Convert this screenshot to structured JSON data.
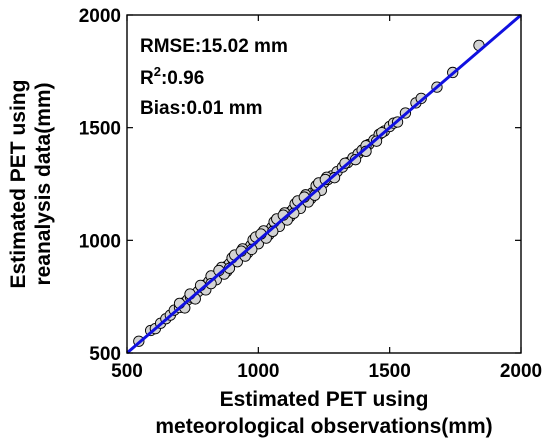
{
  "chart_data": {
    "type": "scatter",
    "title": "",
    "xlabel": [
      "Estimated PET using",
      "meteorological observations(mm)"
    ],
    "ylabel": [
      "Estimated PET using",
      "reanalysis data(mm)"
    ],
    "xlim": [
      500,
      2000
    ],
    "ylim": [
      500,
      2000
    ],
    "xticks": [
      "500",
      "1000",
      "1500",
      "2000"
    ],
    "yticks": [
      "500",
      "1000",
      "1500",
      "2000"
    ],
    "grid": false,
    "fit_line": {
      "color": "#1010e0",
      "x": [
        500,
        2000
      ],
      "y": [
        500,
        2000
      ]
    },
    "annotations": {
      "rmse": "RMSE:15.02 mm",
      "r2_base": "R",
      "r2_sup": "2",
      "r2_value": ":0.96",
      "bias": "Bias:0.01 mm"
    },
    "marker_color": "#d3d3d3",
    "series": [
      {
        "points": [
          [
            545,
            552
          ],
          [
            590,
            600
          ],
          [
            608,
            608
          ],
          [
            628,
            632
          ],
          [
            648,
            652
          ],
          [
            665,
            668
          ],
          [
            680,
            690
          ],
          [
            700,
            702
          ],
          [
            715,
            722
          ],
          [
            730,
            735
          ],
          [
            742,
            748
          ],
          [
            755,
            758
          ],
          [
            770,
            772
          ],
          [
            785,
            792
          ],
          [
            798,
            802
          ],
          [
            812,
            818
          ],
          [
            825,
            830
          ],
          [
            838,
            840
          ],
          [
            852,
            858
          ],
          [
            865,
            870
          ],
          [
            878,
            884
          ],
          [
            890,
            896
          ],
          [
            905,
            912
          ],
          [
            918,
            922
          ],
          [
            930,
            936
          ],
          [
            945,
            950
          ],
          [
            958,
            962
          ],
          [
            972,
            978
          ],
          [
            985,
            990
          ],
          [
            998,
            1004
          ],
          [
            1012,
            1018
          ],
          [
            1025,
            1030
          ],
          [
            1038,
            1042
          ],
          [
            1052,
            1058
          ],
          [
            1065,
            1070
          ],
          [
            1078,
            1084
          ],
          [
            1092,
            1098
          ],
          [
            1105,
            1110
          ],
          [
            1118,
            1124
          ],
          [
            1132,
            1138
          ],
          [
            1145,
            1150
          ],
          [
            1160,
            1166
          ],
          [
            1175,
            1180
          ],
          [
            1190,
            1196
          ],
          [
            1205,
            1210
          ],
          [
            1220,
            1226
          ],
          [
            1235,
            1240
          ],
          [
            1250,
            1256
          ],
          [
            1265,
            1270
          ],
          [
            1280,
            1286
          ],
          [
            1300,
            1305
          ],
          [
            1320,
            1325
          ],
          [
            1340,
            1345
          ],
          [
            1360,
            1366
          ],
          [
            1380,
            1384
          ],
          [
            1395,
            1400
          ],
          [
            1420,
            1425
          ],
          [
            1440,
            1445
          ],
          [
            1460,
            1470
          ],
          [
            1480,
            1485
          ],
          [
            1500,
            1505
          ],
          [
            1515,
            1520
          ],
          [
            1560,
            1565
          ],
          [
            1600,
            1610
          ],
          [
            1620,
            1630
          ],
          [
            1680,
            1680
          ],
          [
            1740,
            1745
          ],
          [
            1840,
            1865
          ],
          [
            720,
            700
          ],
          [
            760,
            740
          ],
          [
            800,
            780
          ],
          [
            840,
            825
          ],
          [
            880,
            862
          ],
          [
            920,
            905
          ],
          [
            960,
            945
          ],
          [
            1000,
            985
          ],
          [
            1040,
            1025
          ],
          [
            1080,
            1062
          ],
          [
            1120,
            1105
          ],
          [
            1160,
            1142
          ],
          [
            1200,
            1185
          ],
          [
            1240,
            1222
          ],
          [
            700,
            720
          ],
          [
            740,
            762
          ],
          [
            780,
            800
          ],
          [
            820,
            842
          ],
          [
            860,
            880
          ],
          [
            900,
            922
          ],
          [
            940,
            962
          ],
          [
            980,
            1002
          ],
          [
            1020,
            1042
          ],
          [
            1060,
            1082
          ],
          [
            1100,
            1122
          ],
          [
            1140,
            1162
          ],
          [
            1180,
            1202
          ],
          [
            1220,
            1242
          ],
          [
            1260,
            1280
          ],
          [
            870,
            850
          ],
          [
            910,
            935
          ],
          [
            950,
            930
          ],
          [
            990,
            1015
          ],
          [
            1030,
            1010
          ],
          [
            1070,
            1095
          ],
          [
            1110,
            1090
          ],
          [
            1150,
            1175
          ],
          [
            1190,
            1170
          ],
          [
            1230,
            1255
          ],
          [
            820,
            808
          ],
          [
            850,
            866
          ],
          [
            890,
            876
          ],
          [
            935,
            952
          ],
          [
            975,
            960
          ],
          [
            1010,
            1028
          ],
          [
            1055,
            1040
          ],
          [
            1095,
            1112
          ],
          [
            1135,
            1120
          ],
          [
            1175,
            1192
          ],
          [
            1215,
            1200
          ],
          [
            1255,
            1270
          ],
          [
            1290,
            1278
          ],
          [
            1330,
            1342
          ],
          [
            1370,
            1358
          ],
          [
            1410,
            1420
          ],
          [
            1450,
            1440
          ],
          [
            1470,
            1478
          ],
          [
            1530,
            1525
          ],
          [
            1410,
            1395
          ]
        ]
      }
    ]
  }
}
